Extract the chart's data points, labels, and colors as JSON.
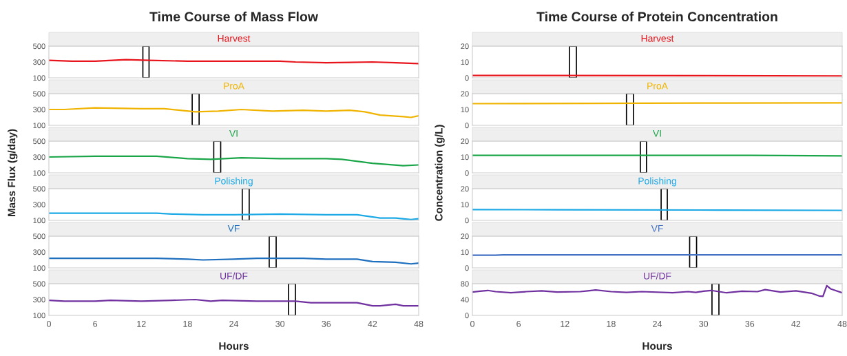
{
  "chart_data": [
    {
      "type": "line",
      "title": "Time Course of Mass Flow",
      "x": [
        0,
        3,
        6,
        10,
        13,
        18,
        24,
        30,
        32,
        36,
        42,
        45,
        48
      ],
      "series": [
        {
          "name": "Harvest",
          "color": "#e8141c",
          "values": [
            320,
            310,
            310,
            330,
            320,
            310,
            310,
            310,
            300,
            290,
            300,
            290,
            280
          ]
        }
      ],
      "xlim": [
        0,
        48
      ],
      "xticks": [
        0,
        6,
        12,
        18,
        24,
        30,
        36,
        42,
        48
      ],
      "ylim": [
        100,
        500
      ],
      "yticks": [
        100,
        300,
        500
      ],
      "tick_labels": "y",
      "bands": [
        {
          "axis": "x",
          "from": 12.2,
          "to": 13.0,
          "color": "#000000"
        }
      ]
    },
    {
      "type": "line",
      "x": [
        0,
        2,
        6,
        12,
        15,
        19,
        22,
        25,
        29,
        33,
        36,
        39,
        41,
        43,
        46,
        47,
        48
      ],
      "series": [
        {
          "name": "ProA",
          "color": "#f0b400",
          "values": [
            300,
            300,
            320,
            310,
            310,
            270,
            280,
            300,
            280,
            290,
            280,
            290,
            270,
            230,
            210,
            200,
            220
          ]
        }
      ],
      "xlim": [
        0,
        48
      ],
      "xticks": [
        0,
        6,
        12,
        18,
        24,
        30,
        36,
        42,
        48
      ],
      "ylim": [
        100,
        500
      ],
      "yticks": [
        100,
        300,
        500
      ],
      "tick_labels": "y",
      "bands": [
        {
          "axis": "x",
          "from": 18.6,
          "to": 19.5,
          "color": "#000000"
        }
      ]
    },
    {
      "type": "line",
      "ylabel": "Mass Flux (g/day)",
      "x": [
        0,
        6,
        14,
        18,
        21,
        25,
        30,
        36,
        38,
        42,
        46,
        48
      ],
      "series": [
        {
          "name": "VI",
          "color": "#1aa648",
          "values": [
            300,
            310,
            310,
            280,
            270,
            290,
            280,
            280,
            270,
            220,
            190,
            200
          ]
        }
      ],
      "xlim": [
        0,
        48
      ],
      "xticks": [
        0,
        6,
        12,
        18,
        24,
        30,
        36,
        42,
        48
      ],
      "ylim": [
        100,
        500
      ],
      "yticks": [
        100,
        300,
        500
      ],
      "tick_labels": "y",
      "bands": [
        {
          "axis": "x",
          "from": 21.4,
          "to": 22.3,
          "color": "#000000"
        }
      ]
    },
    {
      "type": "line",
      "x": [
        0,
        14,
        16,
        20,
        24,
        30,
        36,
        40,
        43,
        45,
        47,
        48
      ],
      "series": [
        {
          "name": "Polishing",
          "color": "#1ca9e6",
          "values": [
            190,
            190,
            180,
            170,
            170,
            180,
            170,
            170,
            130,
            130,
            110,
            120
          ]
        }
      ],
      "xlim": [
        0,
        48
      ],
      "xticks": [
        0,
        6,
        12,
        18,
        24,
        30,
        36,
        42,
        48
      ],
      "ylim": [
        100,
        500
      ],
      "yticks": [
        100,
        300,
        500
      ],
      "tick_labels": "y",
      "bands": [
        {
          "axis": "x",
          "from": 25.1,
          "to": 26.0,
          "color": "#000000"
        }
      ]
    },
    {
      "type": "line",
      "x": [
        0,
        14,
        18,
        20,
        24,
        27,
        33,
        36,
        38,
        40,
        42,
        45,
        47,
        48
      ],
      "series": [
        {
          "name": "VF",
          "color": "#1f6fbf",
          "values": [
            220,
            220,
            210,
            200,
            210,
            220,
            220,
            210,
            210,
            210,
            180,
            170,
            150,
            160
          ]
        }
      ],
      "xlim": [
        0,
        48
      ],
      "xticks": [
        0,
        6,
        12,
        18,
        24,
        30,
        36,
        42,
        48
      ],
      "ylim": [
        100,
        500
      ],
      "yticks": [
        100,
        300,
        500
      ],
      "tick_labels": "y",
      "bands": [
        {
          "axis": "x",
          "from": 28.6,
          "to": 29.5,
          "color": "#000000"
        }
      ]
    },
    {
      "type": "line",
      "xlabel": "Hours",
      "x": [
        0,
        2,
        6,
        8,
        12,
        16,
        19,
        21,
        22.5,
        27,
        32,
        34,
        38,
        40,
        42,
        43,
        45,
        46,
        48
      ],
      "series": [
        {
          "name": "UF/DF",
          "color": "#7030a0",
          "values": [
            290,
            280,
            280,
            290,
            280,
            290,
            300,
            280,
            290,
            280,
            280,
            260,
            260,
            260,
            220,
            220,
            240,
            220,
            220
          ]
        }
      ],
      "xlim": [
        0,
        48
      ],
      "xticks": [
        0,
        6,
        12,
        18,
        24,
        30,
        36,
        42,
        48
      ],
      "ylim": [
        100,
        500
      ],
      "yticks": [
        100,
        300,
        500
      ],
      "bands": [
        {
          "axis": "x",
          "from": 31.1,
          "to": 32.0,
          "color": "#000000"
        }
      ]
    },
    {
      "type": "line",
      "title": "Time Course of Protein Concentration",
      "x": [
        0,
        48
      ],
      "series": [
        {
          "name": "Harvest",
          "color": "#e8141c",
          "values": [
            1.5,
            1.2
          ]
        }
      ],
      "xlim": [
        0,
        48
      ],
      "xticks": [
        0,
        6,
        12,
        18,
        24,
        30,
        36,
        42,
        48
      ],
      "ylim": [
        0,
        20
      ],
      "yticks": [
        0,
        10,
        20
      ],
      "tick_labels": "y",
      "bands": [
        {
          "axis": "x",
          "from": 12.6,
          "to": 13.5,
          "color": "#000000"
        }
      ]
    },
    {
      "type": "line",
      "x": [
        0,
        15,
        33,
        48
      ],
      "series": [
        {
          "name": "ProA",
          "color": "#f0b400",
          "values": [
            13.7,
            13.9,
            14.1,
            14.2
          ]
        }
      ],
      "xlim": [
        0,
        48
      ],
      "xticks": [
        0,
        6,
        12,
        18,
        24,
        30,
        36,
        42,
        48
      ],
      "ylim": [
        0,
        20
      ],
      "yticks": [
        0,
        10,
        20
      ],
      "tick_labels": "y",
      "bands": [
        {
          "axis": "x",
          "from": 20.0,
          "to": 20.9,
          "color": "#000000"
        }
      ]
    },
    {
      "type": "line",
      "ylabel": "Concentration (g/L)",
      "x": [
        0,
        36,
        48
      ],
      "series": [
        {
          "name": "VI",
          "color": "#1aa648",
          "values": [
            11.0,
            11.0,
            10.7
          ]
        }
      ],
      "xlim": [
        0,
        48
      ],
      "xticks": [
        0,
        6,
        12,
        18,
        24,
        30,
        36,
        42,
        48
      ],
      "ylim": [
        0,
        20
      ],
      "yticks": [
        0,
        10,
        20
      ],
      "tick_labels": "y",
      "bands": [
        {
          "axis": "x",
          "from": 21.8,
          "to": 22.6,
          "color": "#000000"
        }
      ]
    },
    {
      "type": "line",
      "x": [
        0,
        11,
        32,
        48
      ],
      "series": [
        {
          "name": "Polishing",
          "color": "#1ca9e6",
          "values": [
            6.8,
            6.7,
            6.5,
            6.3
          ]
        }
      ],
      "xlim": [
        0,
        48
      ],
      "xticks": [
        0,
        6,
        12,
        18,
        24,
        30,
        36,
        42,
        48
      ],
      "ylim": [
        0,
        20
      ],
      "yticks": [
        0,
        10,
        20
      ],
      "tick_labels": "y",
      "bands": [
        {
          "axis": "x",
          "from": 24.5,
          "to": 25.3,
          "color": "#000000"
        }
      ]
    },
    {
      "type": "line",
      "x": [
        0,
        3,
        4,
        48
      ],
      "series": [
        {
          "name": "VF",
          "color": "#4472c4",
          "values": [
            8.0,
            8.0,
            8.2,
            8.2
          ]
        }
      ],
      "xlim": [
        0,
        48
      ],
      "xticks": [
        0,
        6,
        12,
        18,
        24,
        30,
        36,
        42,
        48
      ],
      "ylim": [
        0,
        20
      ],
      "yticks": [
        0,
        10,
        20
      ],
      "tick_labels": "y",
      "bands": [
        {
          "axis": "x",
          "from": 28.2,
          "to": 29.1,
          "color": "#000000"
        }
      ]
    },
    {
      "type": "line",
      "xlabel": "Hours",
      "x": [
        0,
        1,
        2,
        3,
        5,
        7,
        9,
        11,
        14,
        15,
        16,
        18,
        20,
        22,
        26,
        28,
        29,
        30,
        31,
        33,
        35,
        37,
        38,
        40,
        42,
        44,
        45,
        45.5,
        46,
        46.5,
        48
      ],
      "series": [
        {
          "name": "UF/DF",
          "color": "#7030a0",
          "values": [
            59,
            61,
            63,
            60,
            57,
            60,
            62,
            59,
            60,
            62,
            64,
            60,
            58,
            60,
            57,
            60,
            58,
            61,
            63,
            57,
            61,
            60,
            65,
            59,
            62,
            56,
            49,
            48,
            75,
            67,
            57
          ]
        }
      ],
      "xlim": [
        0,
        48
      ],
      "xticks": [
        0,
        6,
        12,
        18,
        24,
        30,
        36,
        42,
        48
      ],
      "ylim": [
        0,
        80
      ],
      "yticks": [
        0,
        40,
        80
      ],
      "bands": [
        {
          "axis": "x",
          "from": 31.1,
          "to": 32.0,
          "color": "#000000"
        }
      ]
    }
  ]
}
